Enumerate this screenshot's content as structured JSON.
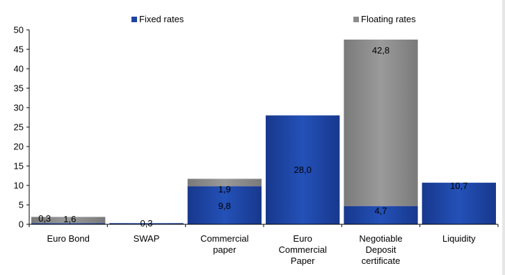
{
  "chart_data": {
    "type": "bar",
    "stacked": true,
    "categories": [
      [
        "Euro Bond"
      ],
      [
        "SWAP"
      ],
      [
        "Commercial",
        "paper"
      ],
      [
        "Euro",
        "Commercial",
        "Paper"
      ],
      [
        "Negotiable",
        "Deposit",
        "certificate"
      ],
      [
        "Liquidity"
      ]
    ],
    "series": [
      {
        "name": "Fixed rates",
        "color": "#1f44a3",
        "values": [
          0.3,
          0.3,
          9.8,
          28.0,
          4.7,
          10.7
        ],
        "labels": [
          "0,3",
          "0,3",
          "9,8",
          "28,0",
          "4,7",
          "10,7"
        ]
      },
      {
        "name": "Floating rates",
        "color": "#8c8c8c",
        "values": [
          1.6,
          0,
          1.9,
          0,
          42.8,
          0
        ],
        "labels": [
          "1,6",
          "",
          "1,9",
          "",
          "42,8",
          ""
        ]
      }
    ],
    "ylim": [
      0,
      50
    ],
    "yticks": [
      0,
      5,
      10,
      15,
      20,
      25,
      30,
      35,
      40,
      45,
      50
    ],
    "grid": false,
    "legend_position": "top"
  }
}
